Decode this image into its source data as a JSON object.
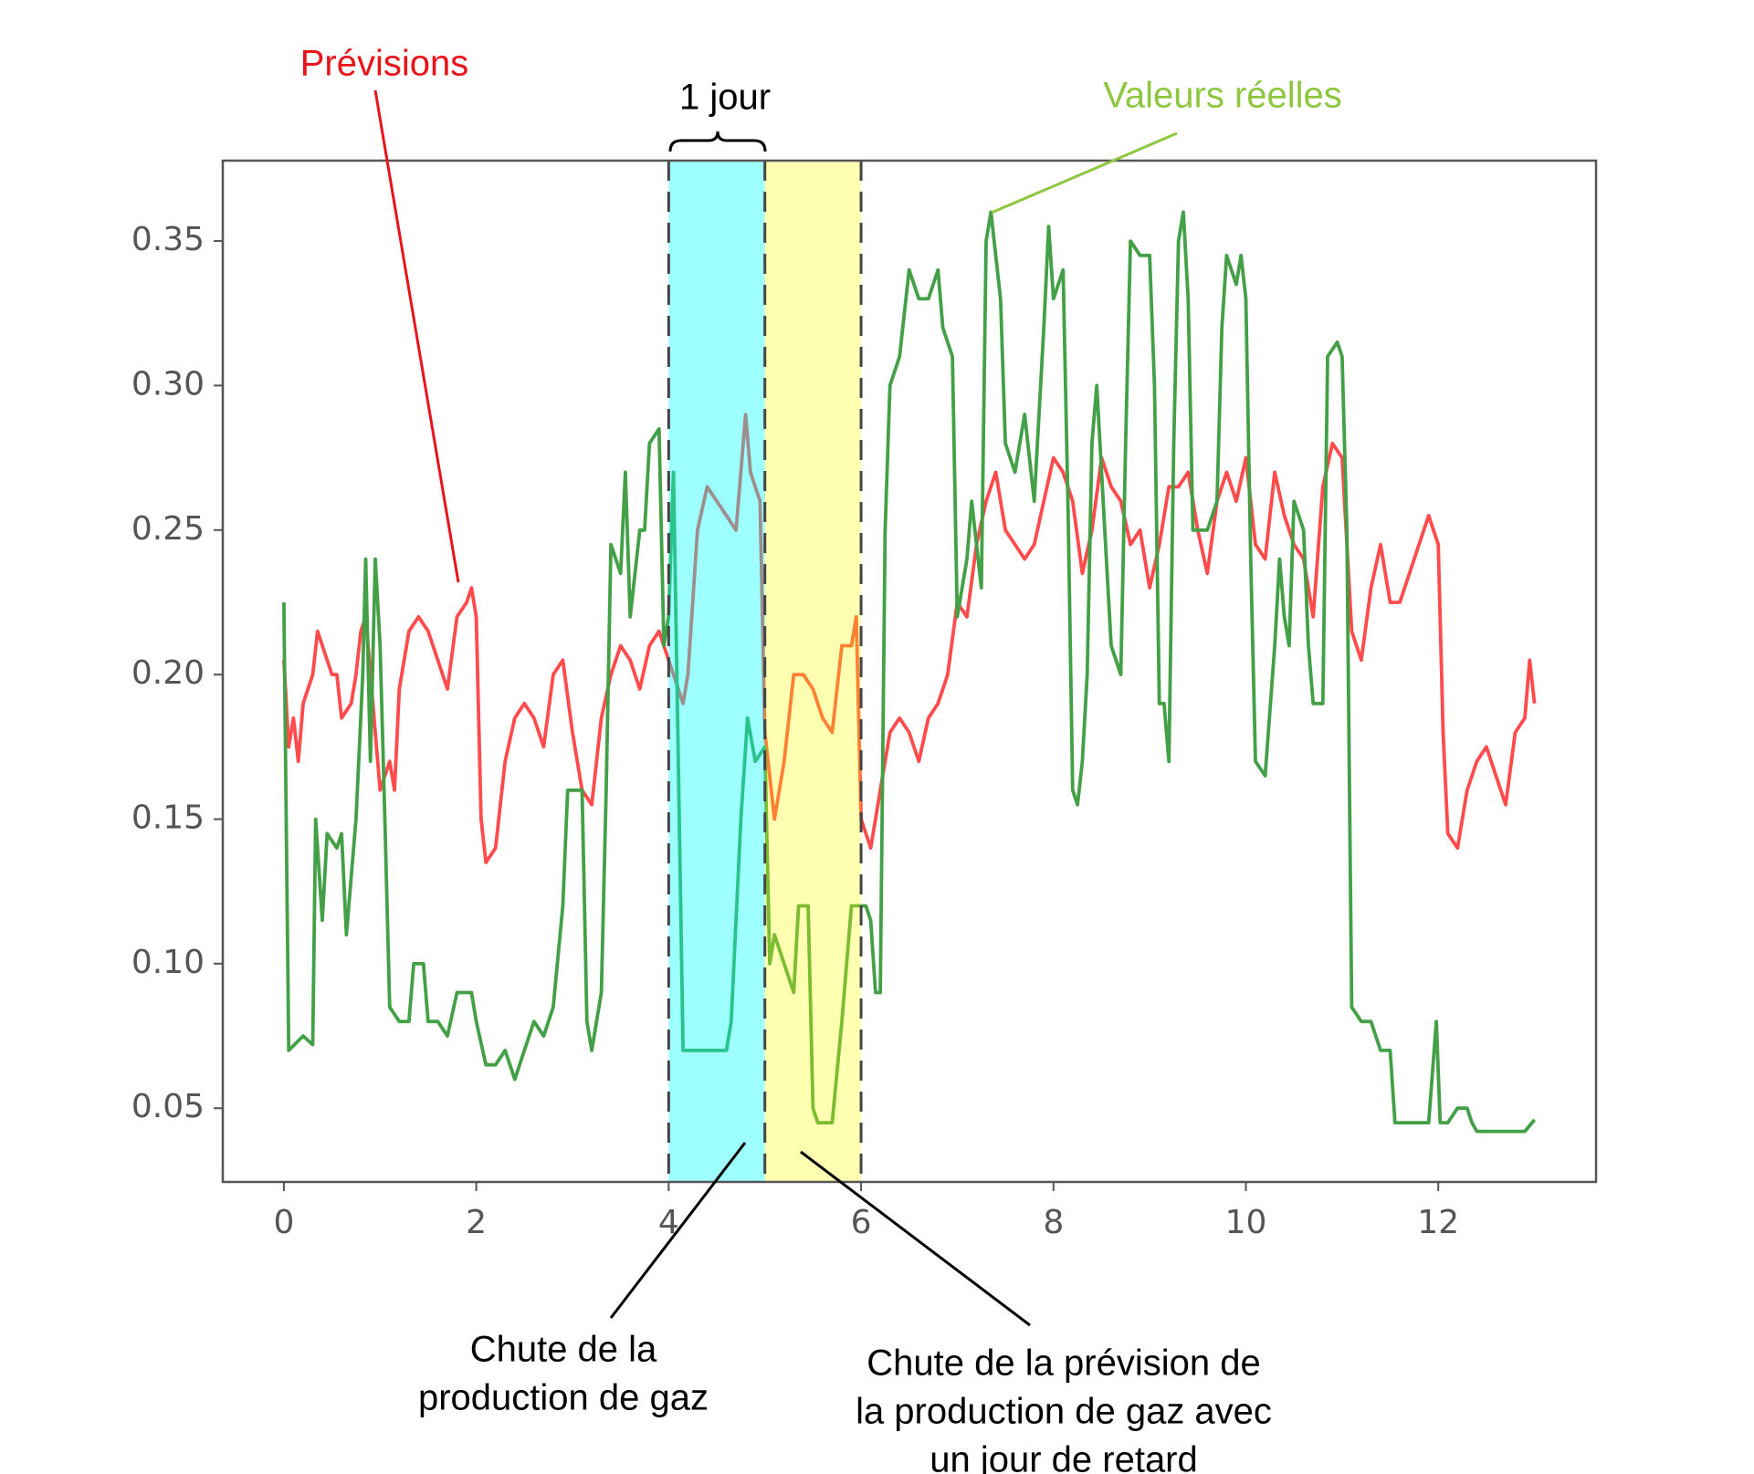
{
  "chart_data": {
    "type": "line",
    "xlim": [
      -0.635,
      13.64
    ],
    "ylim": [
      0.0245,
      0.3778
    ],
    "xticks": [
      0,
      2,
      4,
      6,
      8,
      10,
      12
    ],
    "yticks": [
      0.05,
      {
        "value": 0.1,
        "label": "0.10"
      },
      0.15,
      {
        "value": 0.2,
        "label": "0.20"
      },
      0.25,
      {
        "value": 0.3,
        "label": "0.30"
      },
      0.35
    ],
    "spans": [
      {
        "xmin": 4,
        "xmax": 5,
        "color": "#00ffff",
        "alpha": 0.38
      },
      {
        "xmin": 5,
        "xmax": 6,
        "color": "#ffff00",
        "alpha": 0.3
      }
    ],
    "vlines": [
      4,
      5,
      6
    ],
    "bracket_label": "1 jour",
    "notes": [
      [
        "Chute de la",
        "production de gaz"
      ],
      [
        "Chute de la prévision de",
        "la production de gaz avec",
        "un jour de retard"
      ]
    ],
    "series": [
      {
        "name": "Prévisions",
        "color": "#ff4b4b",
        "x": [
          0,
          0.05,
          0.1,
          0.15,
          0.2,
          0.3,
          0.35,
          0.45,
          0.5,
          0.55,
          0.6,
          0.7,
          0.75,
          0.8,
          0.85,
          0.95,
          1.0,
          1.1,
          1.15,
          1.2,
          1.3,
          1.4,
          1.5,
          1.6,
          1.7,
          1.8,
          1.9,
          1.95,
          2.0,
          2.05,
          2.1,
          2.2,
          2.3,
          2.4,
          2.5,
          2.6,
          2.7,
          2.8,
          2.9,
          3.0,
          3.1,
          3.2,
          3.3,
          3.4,
          3.5,
          3.6,
          3.7,
          3.8,
          3.9,
          4.0,
          4.1,
          4.15,
          4.2,
          4.3,
          4.4,
          4.5,
          4.6,
          4.7,
          4.8,
          4.85,
          4.95,
          5.0,
          5.1,
          5.2,
          5.3,
          5.4,
          5.5,
          5.6,
          5.7,
          5.8,
          5.9,
          5.95,
          6.0,
          6.1,
          6.2,
          6.3,
          6.4,
          6.5,
          6.6,
          6.7,
          6.8,
          6.9,
          7.0,
          7.1,
          7.2,
          7.3,
          7.4,
          7.5,
          7.6,
          7.7,
          7.8,
          7.9,
          8.0,
          8.1,
          8.2,
          8.3,
          8.4,
          8.5,
          8.6,
          8.7,
          8.8,
          8.9,
          9.0,
          9.1,
          9.2,
          9.3,
          9.4,
          9.5,
          9.6,
          9.7,
          9.8,
          9.9,
          10.0,
          10.1,
          10.2,
          10.3,
          10.4,
          10.5,
          10.6,
          10.7,
          10.8,
          10.9,
          11.0,
          11.1,
          11.2,
          11.3,
          11.4,
          11.5,
          11.6,
          11.7,
          11.8,
          11.9,
          12.0,
          12.05,
          12.1,
          12.2,
          12.3,
          12.4,
          12.5,
          12.6,
          12.7,
          12.8,
          12.9,
          12.95,
          13.0
        ],
        "values": [
          0.205,
          0.175,
          0.185,
          0.17,
          0.19,
          0.2,
          0.215,
          0.205,
          0.2,
          0.2,
          0.185,
          0.19,
          0.2,
          0.215,
          0.22,
          0.18,
          0.16,
          0.17,
          0.16,
          0.195,
          0.215,
          0.22,
          0.215,
          0.205,
          0.195,
          0.22,
          0.225,
          0.23,
          0.22,
          0.15,
          0.135,
          0.14,
          0.17,
          0.185,
          0.19,
          0.185,
          0.175,
          0.2,
          0.205,
          0.18,
          0.16,
          0.155,
          0.185,
          0.2,
          0.21,
          0.205,
          0.195,
          0.21,
          0.215,
          0.205,
          0.195,
          0.19,
          0.2,
          0.25,
          0.265,
          0.26,
          0.255,
          0.25,
          0.29,
          0.27,
          0.26,
          0.18,
          0.15,
          0.17,
          0.2,
          0.2,
          0.195,
          0.185,
          0.18,
          0.21,
          0.21,
          0.22,
          0.15,
          0.14,
          0.16,
          0.18,
          0.185,
          0.18,
          0.17,
          0.185,
          0.19,
          0.2,
          0.225,
          0.22,
          0.245,
          0.26,
          0.27,
          0.25,
          0.245,
          0.24,
          0.245,
          0.26,
          0.275,
          0.27,
          0.26,
          0.235,
          0.25,
          0.275,
          0.265,
          0.26,
          0.245,
          0.25,
          0.23,
          0.245,
          0.265,
          0.265,
          0.27,
          0.25,
          0.235,
          0.26,
          0.27,
          0.26,
          0.275,
          0.245,
          0.24,
          0.27,
          0.255,
          0.245,
          0.24,
          0.22,
          0.265,
          0.28,
          0.275,
          0.215,
          0.205,
          0.23,
          0.245,
          0.225,
          0.225,
          0.235,
          0.245,
          0.255,
          0.245,
          0.18,
          0.145,
          0.14,
          0.16,
          0.17,
          0.175,
          0.165,
          0.155,
          0.18,
          0.185,
          0.205,
          0.19
        ]
      },
      {
        "name": "Valeurs réelles",
        "color": "#43a047",
        "x": [
          0,
          0.05,
          0.2,
          0.3,
          0.33,
          0.4,
          0.45,
          0.55,
          0.6,
          0.65,
          0.75,
          0.82,
          0.85,
          0.9,
          0.95,
          1.0,
          1.05,
          1.1,
          1.2,
          1.3,
          1.35,
          1.45,
          1.5,
          1.6,
          1.7,
          1.8,
          1.95,
          2.0,
          2.1,
          2.2,
          2.3,
          2.4,
          2.5,
          2.6,
          2.7,
          2.8,
          2.9,
          2.95,
          3.05,
          3.1,
          3.15,
          3.2,
          3.3,
          3.35,
          3.4,
          3.5,
          3.55,
          3.6,
          3.7,
          3.75,
          3.8,
          3.9,
          3.95,
          4.0,
          4.05,
          4.1,
          4.15,
          4.3,
          4.6,
          4.65,
          4.75,
          4.82,
          4.9,
          5.0,
          5.05,
          5.1,
          5.2,
          5.3,
          5.35,
          5.45,
          5.5,
          5.55,
          5.7,
          5.8,
          5.9,
          6.0,
          6.05,
          6.1,
          6.15,
          6.2,
          6.25,
          6.3,
          6.4,
          6.5,
          6.6,
          6.7,
          6.8,
          6.85,
          6.95,
          7.0,
          7.1,
          7.15,
          7.25,
          7.3,
          7.35,
          7.45,
          7.5,
          7.6,
          7.7,
          7.8,
          7.9,
          7.95,
          8.0,
          8.1,
          8.15,
          8.2,
          8.25,
          8.3,
          8.35,
          8.4,
          8.45,
          8.55,
          8.6,
          8.7,
          8.75,
          8.8,
          8.9,
          9.0,
          9.05,
          9.1,
          9.15,
          9.2,
          9.25,
          9.3,
          9.35,
          9.4,
          9.45,
          9.55,
          9.6,
          9.7,
          9.75,
          9.8,
          9.9,
          9.95,
          10.0,
          10.05,
          10.1,
          10.2,
          10.3,
          10.35,
          10.4,
          10.45,
          10.5,
          10.6,
          10.65,
          10.7,
          10.8,
          10.85,
          10.95,
          11.0,
          11.05,
          11.1,
          11.2,
          11.3,
          11.4,
          11.5,
          11.55,
          11.7,
          11.9,
          11.98,
          12.02,
          12.1,
          12.2,
          12.3,
          12.35,
          12.4,
          12.7,
          12.9,
          13.0
        ],
        "values": [
          0.225,
          0.07,
          0.075,
          0.072,
          0.15,
          0.115,
          0.145,
          0.14,
          0.145,
          0.11,
          0.15,
          0.2,
          0.24,
          0.17,
          0.24,
          0.21,
          0.15,
          0.085,
          0.08,
          0.08,
          0.1,
          0.1,
          0.08,
          0.08,
          0.075,
          0.09,
          0.09,
          0.08,
          0.065,
          0.065,
          0.07,
          0.06,
          0.07,
          0.08,
          0.075,
          0.085,
          0.12,
          0.16,
          0.16,
          0.16,
          0.08,
          0.07,
          0.09,
          0.16,
          0.245,
          0.235,
          0.27,
          0.22,
          0.25,
          0.25,
          0.28,
          0.285,
          0.21,
          0.22,
          0.27,
          0.17,
          0.07,
          0.07,
          0.07,
          0.08,
          0.15,
          0.185,
          0.17,
          0.175,
          0.1,
          0.11,
          0.1,
          0.09,
          0.12,
          0.12,
          0.05,
          0.045,
          0.045,
          0.08,
          0.12,
          0.12,
          0.12,
          0.115,
          0.09,
          0.09,
          0.25,
          0.3,
          0.31,
          0.34,
          0.33,
          0.33,
          0.34,
          0.32,
          0.31,
          0.22,
          0.24,
          0.26,
          0.23,
          0.35,
          0.36,
          0.33,
          0.28,
          0.27,
          0.29,
          0.26,
          0.32,
          0.355,
          0.33,
          0.34,
          0.26,
          0.16,
          0.155,
          0.17,
          0.2,
          0.28,
          0.3,
          0.24,
          0.21,
          0.2,
          0.28,
          0.35,
          0.345,
          0.345,
          0.3,
          0.19,
          0.19,
          0.17,
          0.28,
          0.35,
          0.36,
          0.33,
          0.25,
          0.25,
          0.25,
          0.26,
          0.32,
          0.345,
          0.335,
          0.345,
          0.33,
          0.24,
          0.17,
          0.165,
          0.21,
          0.24,
          0.22,
          0.21,
          0.26,
          0.25,
          0.21,
          0.19,
          0.19,
          0.31,
          0.315,
          0.31,
          0.25,
          0.085,
          0.08,
          0.08,
          0.07,
          0.07,
          0.045,
          0.045,
          0.045,
          0.08,
          0.045,
          0.045,
          0.05,
          0.05,
          0.045,
          0.042,
          0.042,
          0.042,
          0.046
        ]
      }
    ]
  }
}
